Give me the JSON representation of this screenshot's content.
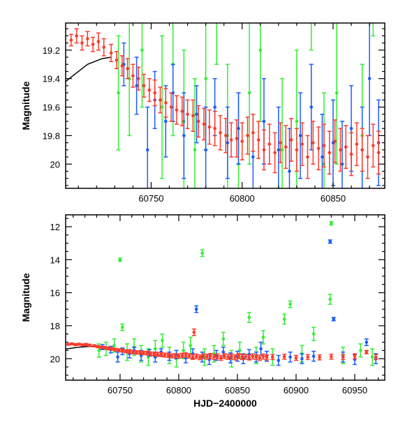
{
  "chart_data": {
    "type": "scatter",
    "panels": [
      {
        "name": "top",
        "xlim": [
          60703,
          60878.4
        ],
        "ylim": [
          19.01,
          20.17
        ],
        "xticks": [
          60750,
          60800,
          60850
        ],
        "xminor": 10,
        "yticks": [
          19.2,
          19.4,
          19.6,
          19.8,
          20
        ],
        "yticklabels": [
          "19.2",
          "19.4",
          "19.6",
          "19.8",
          "20"
        ],
        "yminor": 0.05,
        "xlabel": "",
        "ylabel": "Magnitude",
        "y_inverted": true
      },
      {
        "name": "bottom",
        "xlim": [
          60703.6,
          60975.6
        ],
        "ylim": [
          11.28,
          21.3
        ],
        "xticks": [
          60750,
          60800,
          60850,
          60900,
          60950
        ],
        "xminor": 10,
        "yticks": [
          12,
          14,
          16,
          18,
          20
        ],
        "yticklabels": [
          "12",
          "14",
          "16",
          "18",
          "20"
        ],
        "yminor": 0.5,
        "xlabel": "HJD−2400000",
        "ylabel": "Magnitude",
        "y_inverted": true
      }
    ],
    "colors": {
      "red": "#ff3a28",
      "blue": "#1a5cff",
      "green": "#33ee33",
      "model": "#000000"
    },
    "model": [
      [
        60703,
        19.42
      ],
      [
        60707,
        19.38
      ],
      [
        60711,
        19.34
      ],
      [
        60715,
        19.3
      ],
      [
        60719,
        19.28
      ],
      [
        60723,
        19.26
      ],
      [
        60728,
        19.25
      ]
    ],
    "series": [
      {
        "name": "green",
        "color": "#33ee33",
        "points": [
          [
            60732,
            19.5,
            0.4
          ],
          [
            60738,
            19.4,
            0.4
          ],
          [
            60745,
            19.2,
            0.4
          ],
          [
            60750,
            14.0,
            0.1
          ],
          [
            60752,
            18.1,
            0.2
          ],
          [
            60756,
            19.6,
            0.5
          ],
          [
            60762,
            19.3,
            0.5
          ],
          [
            60768,
            19.7,
            0.5
          ],
          [
            60774,
            19.9,
            0.5
          ],
          [
            60780,
            19.4,
            0.5
          ],
          [
            60786,
            18.9,
            0.4
          ],
          [
            60792,
            19.8,
            0.5
          ],
          [
            60798,
            20.0,
            0.5
          ],
          [
            60804,
            19.5,
            0.5
          ],
          [
            60810,
            19.2,
            0.5
          ],
          [
            60820,
            13.6,
            0.2
          ],
          [
            60822,
            19.9,
            0.5
          ],
          [
            60830,
            19.7,
            0.5
          ],
          [
            60838,
            18.8,
            0.4
          ],
          [
            60845,
            20.0,
            0.5
          ],
          [
            60852,
            19.5,
            0.5
          ],
          [
            60860,
            17.5,
            0.3
          ],
          [
            60866,
            19.8,
            0.5
          ],
          [
            60872,
            18.7,
            0.4
          ],
          [
            60880,
            19.9,
            0.5
          ],
          [
            60890,
            17.6,
            0.3
          ],
          [
            60895,
            16.7,
            0.2
          ],
          [
            60905,
            19.7,
            0.5
          ],
          [
            60915,
            18.5,
            0.4
          ],
          [
            60929,
            16.4,
            0.3
          ],
          [
            60930,
            11.8,
            0.1
          ],
          [
            60940,
            19.8,
            0.5
          ],
          [
            60955,
            19.5,
            0.4
          ],
          [
            60965,
            19.9,
            0.5
          ]
        ]
      },
      {
        "name": "blue",
        "color": "#1a5cff",
        "points": [
          [
            60735,
            19.3,
            0.15
          ],
          [
            60742,
            19.45,
            0.2
          ],
          [
            60748,
            19.9,
            0.3
          ],
          [
            60752,
            19.55,
            0.2
          ],
          [
            60758,
            19.7,
            0.25
          ],
          [
            60762,
            19.5,
            0.2
          ],
          [
            60768,
            19.8,
            0.3
          ],
          [
            60775,
            19.65,
            0.2
          ],
          [
            60780,
            19.9,
            0.3
          ],
          [
            60785,
            19.6,
            0.2
          ],
          [
            60792,
            19.85,
            0.25
          ],
          [
            60798,
            19.75,
            0.25
          ],
          [
            60806,
            19.95,
            0.3
          ],
          [
            60812,
            19.7,
            0.3
          ],
          [
            60815,
            17.0,
            0.2
          ],
          [
            60820,
            19.9,
            0.3
          ],
          [
            60826,
            20.05,
            0.3
          ],
          [
            60832,
            19.8,
            0.3
          ],
          [
            60838,
            19.6,
            0.3
          ],
          [
            60844,
            19.95,
            0.3
          ],
          [
            60850,
            19.85,
            0.3
          ],
          [
            60855,
            20.0,
            0.3
          ],
          [
            60860,
            19.75,
            0.3
          ],
          [
            60866,
            19.9,
            0.3
          ],
          [
            60870,
            19.4,
            0.4
          ],
          [
            60875,
            19.85,
            0.3
          ],
          [
            60885,
            20.1,
            0.3
          ],
          [
            60895,
            19.9,
            0.3
          ],
          [
            60905,
            20.0,
            0.3
          ],
          [
            60915,
            19.85,
            0.3
          ],
          [
            60929,
            12.9,
            0.1
          ],
          [
            60932,
            17.6,
            0.1
          ],
          [
            60940,
            19.9,
            0.3
          ],
          [
            60950,
            20.05,
            0.3
          ],
          [
            60960,
            19.0,
            0.2
          ],
          [
            60968,
            20.0,
            0.3
          ]
        ]
      },
      {
        "name": "red",
        "color": "#ff3a28",
        "points": [
          [
            60706,
            19.13,
            0.04
          ],
          [
            60709,
            19.1,
            0.05
          ],
          [
            60712,
            19.15,
            0.05
          ],
          [
            60715,
            19.12,
            0.05
          ],
          [
            60718,
            19.16,
            0.05
          ],
          [
            60721,
            19.14,
            0.06
          ],
          [
            60724,
            19.18,
            0.06
          ],
          [
            60728,
            19.22,
            0.06
          ],
          [
            60731,
            19.27,
            0.06
          ],
          [
            60734,
            19.31,
            0.07
          ],
          [
            60737,
            19.33,
            0.07
          ],
          [
            60740,
            19.38,
            0.08
          ],
          [
            60743,
            19.4,
            0.08
          ],
          [
            60746,
            19.45,
            0.08
          ],
          [
            60749,
            19.48,
            0.08
          ],
          [
            60752,
            19.5,
            0.09
          ],
          [
            60755,
            19.55,
            0.09
          ],
          [
            60758,
            19.57,
            0.1
          ],
          [
            60761,
            19.6,
            0.1
          ],
          [
            60764,
            19.62,
            0.1
          ],
          [
            60767,
            19.63,
            0.1
          ],
          [
            60770,
            19.65,
            0.1
          ],
          [
            60773,
            19.66,
            0.11
          ],
          [
            60776,
            19.7,
            0.11
          ],
          [
            60779,
            19.72,
            0.11
          ],
          [
            60782,
            19.74,
            0.12
          ],
          [
            60785,
            19.75,
            0.12
          ],
          [
            60788,
            19.78,
            0.12
          ],
          [
            60791,
            19.8,
            0.12
          ],
          [
            60794,
            19.83,
            0.12
          ],
          [
            60797,
            19.82,
            0.13
          ],
          [
            60800,
            19.84,
            0.13
          ],
          [
            60803,
            19.8,
            0.13
          ],
          [
            60806,
            19.78,
            0.13
          ],
          [
            60809,
            19.83,
            0.13
          ],
          [
            60812,
            19.9,
            0.14
          ],
          [
            60813,
            18.4,
            0.2
          ],
          [
            60815,
            19.86,
            0.14
          ],
          [
            60818,
            19.92,
            0.14
          ],
          [
            60821,
            19.85,
            0.14
          ],
          [
            60824,
            19.88,
            0.15
          ],
          [
            60827,
            19.83,
            0.15
          ],
          [
            60830,
            19.9,
            0.15
          ],
          [
            60833,
            19.86,
            0.15
          ],
          [
            60836,
            19.95,
            0.15
          ],
          [
            60839,
            19.85,
            0.15
          ],
          [
            60842,
            19.89,
            0.15
          ],
          [
            60845,
            19.87,
            0.15
          ],
          [
            60848,
            19.92,
            0.15
          ],
          [
            60851,
            19.84,
            0.15
          ],
          [
            60854,
            19.9,
            0.15
          ],
          [
            60857,
            19.88,
            0.15
          ],
          [
            60860,
            19.93,
            0.15
          ],
          [
            60863,
            19.86,
            0.15
          ],
          [
            60866,
            19.9,
            0.15
          ],
          [
            60869,
            19.95,
            0.15
          ],
          [
            60872,
            19.87,
            0.15
          ],
          [
            60875,
            19.92,
            0.15
          ],
          [
            60880,
            19.9,
            0.15
          ],
          [
            60890,
            19.88,
            0.15
          ],
          [
            60900,
            19.95,
            0.15
          ],
          [
            60910,
            19.9,
            0.15
          ],
          [
            60920,
            19.92,
            0.15
          ],
          [
            60930,
            19.88,
            0.15
          ],
          [
            60940,
            19.9,
            0.15
          ],
          [
            60950,
            19.85,
            0.15
          ],
          [
            60960,
            19.6,
            0.1
          ],
          [
            60968,
            19.9,
            0.15
          ]
        ]
      }
    ]
  }
}
